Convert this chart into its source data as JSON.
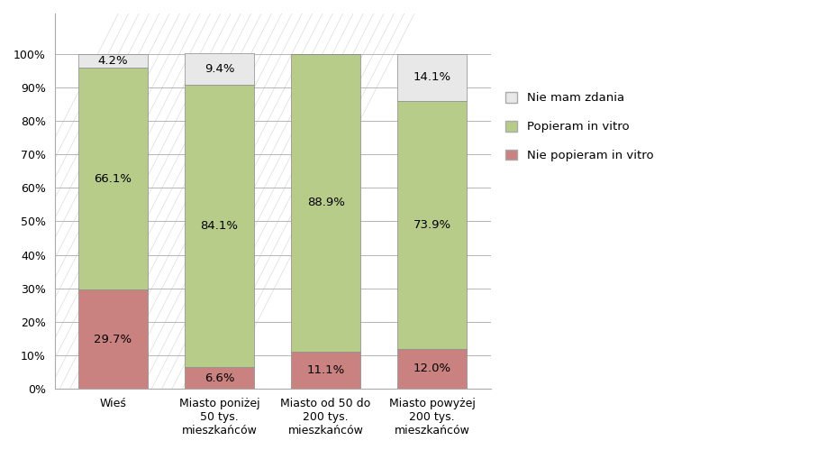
{
  "categories": [
    "Wieś",
    "Miasto poniżej\n50 tys.\nmieszkańców",
    "Miasto od 50 do\n200 tys.\nmieszkańców",
    "Miasto powyżej\n200 tys.\nmieszkańców"
  ],
  "nie_popieram": [
    29.7,
    6.6,
    11.1,
    12.0
  ],
  "popieram": [
    66.1,
    84.1,
    88.9,
    73.9
  ],
  "nie_mam_zdania": [
    4.2,
    9.4,
    0.0,
    14.1
  ],
  "nie_popieram_color": "#c9827f",
  "popieram_color": "#b8cc8a",
  "nie_mam_zdania_color": "#e8e8e8",
  "bar_edge_color": "#888888",
  "background_color": "#ffffff",
  "ylim": [
    0,
    112
  ],
  "yticks": [
    0,
    10,
    20,
    30,
    40,
    50,
    60,
    70,
    80,
    90,
    100
  ],
  "ytick_labels": [
    "0%",
    "10%",
    "20%",
    "30%",
    "40%",
    "50%",
    "60%",
    "70%",
    "80%",
    "90%",
    "100%"
  ],
  "legend_labels": [
    "Nie mam zdania",
    "Popieram in vitro",
    "Nie popieram in vitro"
  ],
  "bar_width": 0.65,
  "label_fontsize": 9.5,
  "tick_fontsize": 9,
  "legend_fontsize": 9.5,
  "grid_color": "#aaaaaa"
}
